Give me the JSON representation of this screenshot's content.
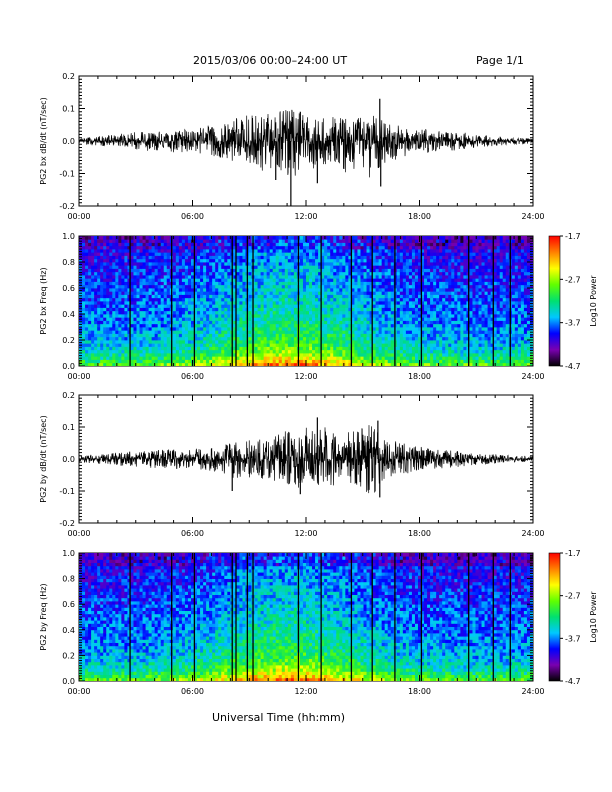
{
  "header": {
    "title": "2015/03/06  00:00–24:00 UT",
    "page": "Page 1/1"
  },
  "footer": {
    "xlabel": "Universal Time (hh:mm)"
  },
  "chart_data": [
    {
      "id": "bx-timeseries",
      "type": "line",
      "ylabel": "PG2 bx dB/dt (nT/sec)",
      "ylim": [
        -0.2,
        0.2
      ],
      "yticks": [
        "-0.2",
        "-0.1",
        "0.0",
        "0.1",
        "0.2"
      ],
      "xticks": [
        "00:00",
        "06:00",
        "12:00",
        "18:00",
        "24:00"
      ],
      "xlim_hours": [
        0,
        24
      ],
      "series": [
        {
          "color": "#000000",
          "envelope": {
            "hours": [
              0,
              1,
              2,
              3,
              4,
              5,
              6,
              7,
              8,
              9,
              10,
              10.5,
              11,
              11.5,
              12,
              13,
              14,
              15,
              15.5,
              16,
              17,
              18,
              19,
              20,
              21,
              22,
              23,
              24
            ],
            "upper": [
              0.01,
              0.015,
              0.02,
              0.03,
              0.03,
              0.035,
              0.035,
              0.05,
              0.07,
              0.08,
              0.09,
              0.09,
              0.1,
              0.1,
              0.08,
              0.07,
              0.08,
              0.07,
              0.09,
              0.08,
              0.05,
              0.04,
              0.03,
              0.03,
              0.02,
              0.015,
              0.01,
              0.01
            ],
            "lower": [
              -0.01,
              -0.015,
              -0.02,
              -0.03,
              -0.03,
              -0.035,
              -0.035,
              -0.045,
              -0.06,
              -0.08,
              -0.1,
              -0.09,
              -0.12,
              -0.11,
              -0.09,
              -0.08,
              -0.1,
              -0.09,
              -0.13,
              -0.08,
              -0.05,
              -0.04,
              -0.03,
              -0.03,
              -0.02,
              -0.015,
              -0.01,
              -0.01
            ]
          },
          "spikes": [
            {
              "hour": 10.4,
              "value": -0.12
            },
            {
              "hour": 11.2,
              "value": -0.2
            },
            {
              "hour": 11.7,
              "value": 0.09
            },
            {
              "hour": 12.6,
              "value": -0.13
            },
            {
              "hour": 15.9,
              "value": 0.13
            },
            {
              "hour": 15.95,
              "value": -0.14
            }
          ]
        }
      ]
    },
    {
      "id": "bx-spectrogram",
      "type": "heatmap",
      "ylabel": "PG2 bx Freq (Hz)",
      "ylim": [
        0.0,
        1.0
      ],
      "yticks": [
        "0.0",
        "0.2",
        "0.4",
        "0.6",
        "0.8",
        "1.0"
      ],
      "xticks": [
        "00:00",
        "06:00",
        "12:00",
        "18:00",
        "24:00"
      ],
      "xlim_hours": [
        0,
        24
      ],
      "colorbar": {
        "label": "Log10 Power",
        "ticks": [
          "-1.7",
          "-2.7",
          "-3.7",
          "-4.7"
        ],
        "range": [
          -4.7,
          -1.7
        ],
        "colors": [
          "#000000",
          "#7a00b0",
          "#0000ff",
          "#00c8ff",
          "#00e070",
          "#60ff00",
          "#ffff00",
          "#ff8000",
          "#ff0000"
        ]
      },
      "gap_hours": [
        2.7,
        4.9,
        6.1,
        8.1,
        8.3,
        8.9,
        9.2,
        11.6,
        12.8,
        14.4,
        15.5,
        16.7,
        18.1,
        20.6,
        21.9,
        22.8
      ]
    },
    {
      "id": "by-timeseries",
      "type": "line",
      "ylabel": "PG2 by dB/dt (nT/sec)",
      "ylim": [
        -0.2,
        0.2
      ],
      "yticks": [
        "-0.2",
        "-0.1",
        "0.0",
        "0.1",
        "0.2"
      ],
      "xticks": [
        "00:00",
        "06:00",
        "12:00",
        "18:00",
        "24:00"
      ],
      "xlim_hours": [
        0,
        24
      ],
      "series": [
        {
          "color": "#000000",
          "envelope": {
            "hours": [
              0,
              1,
              2,
              3,
              4,
              5,
              6,
              7,
              8,
              9,
              10,
              10.5,
              11,
              11.5,
              12,
              13,
              14,
              15,
              15.5,
              16,
              17,
              18,
              19,
              20,
              21,
              22,
              23,
              24
            ],
            "upper": [
              0.01,
              0.015,
              0.02,
              0.025,
              0.03,
              0.03,
              0.03,
              0.04,
              0.05,
              0.06,
              0.07,
              0.08,
              0.09,
              0.09,
              0.1,
              0.11,
              0.08,
              0.1,
              0.11,
              0.07,
              0.05,
              0.04,
              0.03,
              0.025,
              0.02,
              0.015,
              0.01,
              0.01
            ],
            "lower": [
              -0.01,
              -0.015,
              -0.02,
              -0.025,
              -0.03,
              -0.03,
              -0.03,
              -0.04,
              -0.06,
              -0.06,
              -0.07,
              -0.07,
              -0.08,
              -0.09,
              -0.1,
              -0.09,
              -0.08,
              -0.1,
              -0.12,
              -0.07,
              -0.05,
              -0.04,
              -0.03,
              -0.025,
              -0.02,
              -0.015,
              -0.01,
              -0.01
            ]
          },
          "spikes": [
            {
              "hour": 8.1,
              "value": -0.1
            },
            {
              "hour": 11.7,
              "value": -0.11
            },
            {
              "hour": 12.6,
              "value": 0.13
            },
            {
              "hour": 15.8,
              "value": 0.12
            },
            {
              "hour": 15.9,
              "value": -0.12
            }
          ]
        }
      ]
    },
    {
      "id": "by-spectrogram",
      "type": "heatmap",
      "ylabel": "PG2 by Freq (Hz)",
      "ylim": [
        0.0,
        1.0
      ],
      "yticks": [
        "0.0",
        "0.2",
        "0.4",
        "0.6",
        "0.8",
        "1.0"
      ],
      "xticks": [
        "00:00",
        "06:00",
        "12:00",
        "18:00",
        "24:00"
      ],
      "xlim_hours": [
        0,
        24
      ],
      "colorbar": {
        "label": "Log10 Power",
        "ticks": [
          "-1.7",
          "-2.7",
          "-3.7",
          "-4.7"
        ],
        "range": [
          -4.7,
          -1.7
        ],
        "colors": [
          "#000000",
          "#7a00b0",
          "#0000ff",
          "#00c8ff",
          "#00e070",
          "#60ff00",
          "#ffff00",
          "#ff8000",
          "#ff0000"
        ]
      },
      "gap_hours": [
        2.7,
        4.9,
        6.1,
        8.1,
        8.3,
        8.9,
        9.2,
        11.6,
        12.8,
        14.4,
        15.5,
        16.7,
        18.1,
        20.6,
        21.9,
        22.8
      ]
    }
  ]
}
